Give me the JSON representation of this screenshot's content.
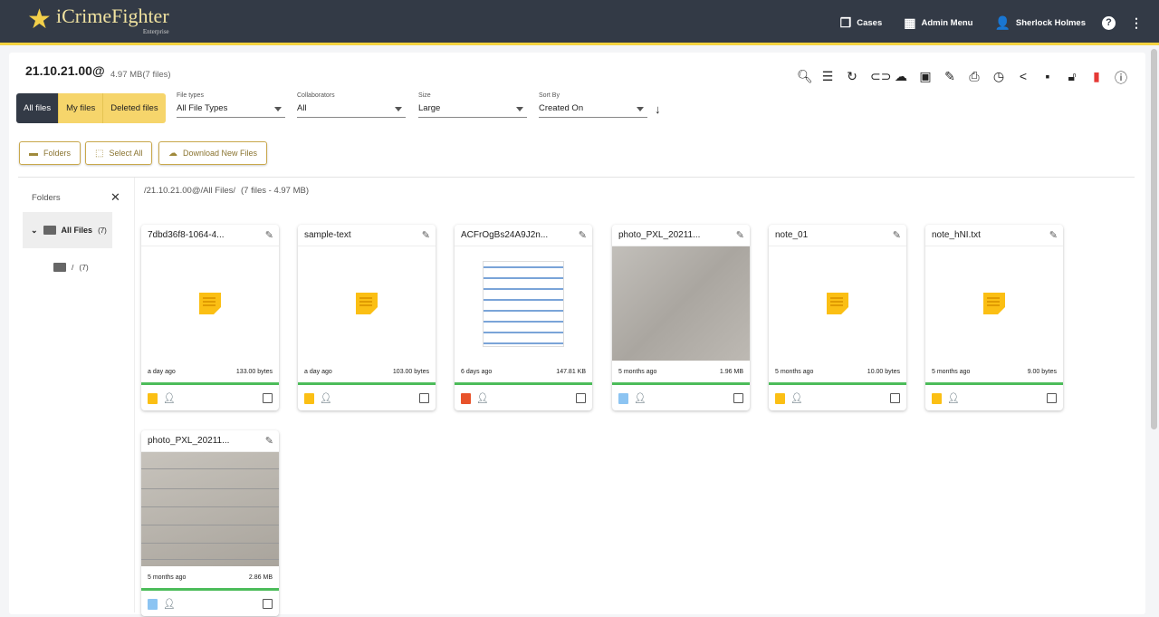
{
  "header": {
    "brand": "iCrimeFighter",
    "brand_sub": "Enterprise",
    "nav": [
      {
        "label": "Cases",
        "icon": "cases-icon"
      },
      {
        "label": "Admin Menu",
        "icon": "admin-building-icon"
      },
      {
        "label": "Sherlock Holmes",
        "icon": "user-icon"
      }
    ],
    "help": "?"
  },
  "case": {
    "title": "21.10.21.00@",
    "size": "4.97 MB(7 files)"
  },
  "toolbar": [
    "search-icon",
    "list-icon",
    "refresh-icon",
    "link-icon",
    "cloud-upload-icon",
    "new-folder-icon",
    "edit-icon",
    "print-icon",
    "history-icon",
    "share-icon",
    "archive-icon",
    "lock-open-icon",
    "delete-icon",
    "info-icon"
  ],
  "tabs": [
    {
      "label": "All files",
      "active": true
    },
    {
      "label": "My files"
    },
    {
      "label": "Deleted files"
    }
  ],
  "filters": [
    {
      "label": "File types",
      "value": "All File Types"
    },
    {
      "label": "Collaborators",
      "value": "All"
    },
    {
      "label": "Size",
      "value": "Large"
    },
    {
      "label": "Sort By",
      "value": "Created On"
    }
  ],
  "actions": {
    "folders": "Folders",
    "select_all": "Select All",
    "download": "Download New Files"
  },
  "sidebar": {
    "title": "Folders",
    "all_files": "All Files",
    "all_count": "(7)",
    "sub": "/",
    "sub_count": "(7)"
  },
  "path": {
    "text": "/21.10.21.00@/All Files/",
    "summary": "(7 files - 4.97 MB)"
  },
  "colors": {
    "header": "#333a46",
    "accent": "#f5d33f",
    "progress": "#4cbc5a",
    "delete": "#e53935"
  },
  "files": [
    {
      "name": "7dbd36f8-1064-4...",
      "date": "a day ago",
      "size": "133.00 bytes",
      "type": "note"
    },
    {
      "name": "sample-text",
      "date": "a day ago",
      "size": "103.00 bytes",
      "type": "note"
    },
    {
      "name": "ACFrOgBs24A9J2n...",
      "date": "6 days ago",
      "size": "147.81 KB",
      "type": "pdf"
    },
    {
      "name": "photo_PXL_20211...",
      "date": "5 months ago",
      "size": "1.96 MB",
      "type": "image"
    },
    {
      "name": "note_01",
      "date": "5 months ago",
      "size": "10.00 bytes",
      "type": "note"
    },
    {
      "name": "note_hNI.txt",
      "date": "5 months ago",
      "size": "9.00 bytes",
      "type": "note"
    },
    {
      "name": "photo_PXL_20211...",
      "date": "5 months ago",
      "size": "2.86 MB",
      "type": "image2"
    }
  ]
}
